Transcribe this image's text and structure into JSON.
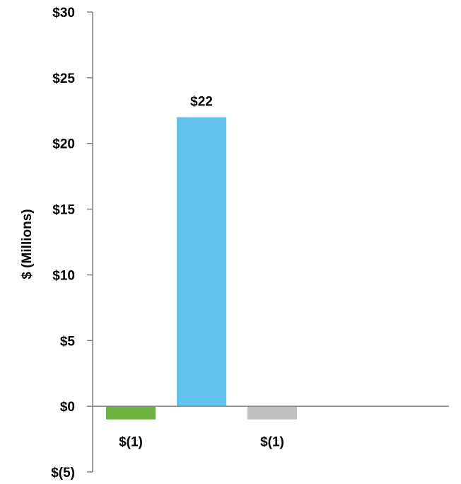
{
  "chart_data": {
    "type": "bar",
    "title": "",
    "xlabel": "",
    "ylabel": "$ (Millions)",
    "ylim": [
      -5,
      30
    ],
    "yticks": [
      -5,
      0,
      5,
      10,
      15,
      20,
      25,
      30
    ],
    "ytick_labels": [
      "$(5)",
      "$0",
      "$5",
      "$10",
      "$15",
      "$20",
      "$25",
      "$30"
    ],
    "grid": false,
    "legend": "none",
    "bars": [
      {
        "value": -1,
        "label": "$(1)",
        "color": "#6db33f"
      },
      {
        "value": 22,
        "label": "$22",
        "color": "#63c3ef"
      },
      {
        "value": -1,
        "label": "$(1)",
        "color": "#bfbfbf"
      }
    ]
  }
}
